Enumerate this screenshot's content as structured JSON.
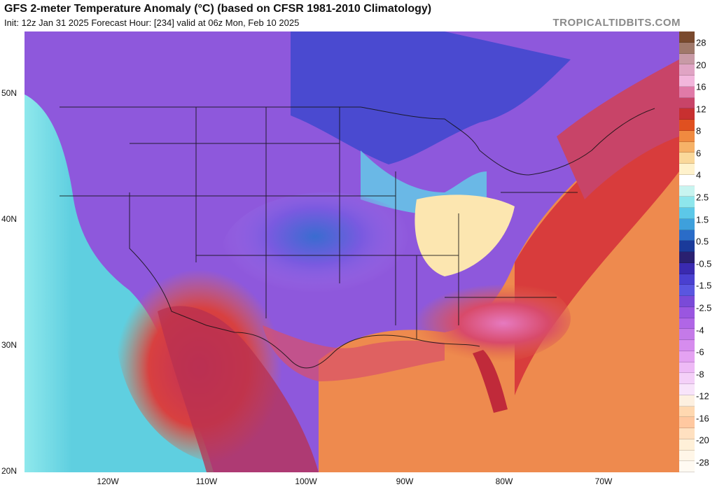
{
  "header": {
    "title": "GFS 2-meter Temperature Anomaly (°C) (based on CFSR 1981-2010 Climatology)",
    "subtitle": "Init: 12z Jan 31 2025   Forecast Hour: [234]   valid at 06z Mon, Feb 10 2025",
    "brand": "TROPICALTIDBITS.COM"
  },
  "map": {
    "lat_labels": [
      "50N",
      "40N",
      "30N",
      "20N"
    ],
    "lon_labels": [
      "120W",
      "110W",
      "100W",
      "90W",
      "80W",
      "70W"
    ]
  },
  "colorbar": {
    "labels": [
      "28",
      "20",
      "16",
      "12",
      "8",
      "6",
      "4",
      "2.5",
      "1.5",
      "0.5",
      "-0.5",
      "-1.5",
      "-2.5",
      "-4",
      "-6",
      "-8",
      "-12",
      "-16",
      "-20",
      "-28"
    ],
    "colors": [
      "#7a4a2e",
      "#a0786a",
      "#c89aa6",
      "#e0a4c4",
      "#f2b6dc",
      "#e07aa8",
      "#c84468",
      "#c83030",
      "#e05020",
      "#f08a40",
      "#f6b268",
      "#fad89a",
      "#fff2cc",
      "#ffffff",
      "#c8f4f0",
      "#8ee6ec",
      "#5cc8e8",
      "#3ea0dc",
      "#2a6cc8",
      "#1a3a9a",
      "#2a2070",
      "#3a2ab0",
      "#4a40d0",
      "#5a56e0",
      "#7a4ad8",
      "#9a56e0",
      "#b066e6",
      "#c47ae8",
      "#d68cee",
      "#e4a2f2",
      "#eebaf6",
      "#f4d0f8",
      "#f8e4fa",
      "#fdf0e0",
      "#ffd8b0",
      "#ffc8a0",
      "#ffe0c0",
      "#fff0d8",
      "#fff6e8",
      "#fffaf2"
    ]
  }
}
